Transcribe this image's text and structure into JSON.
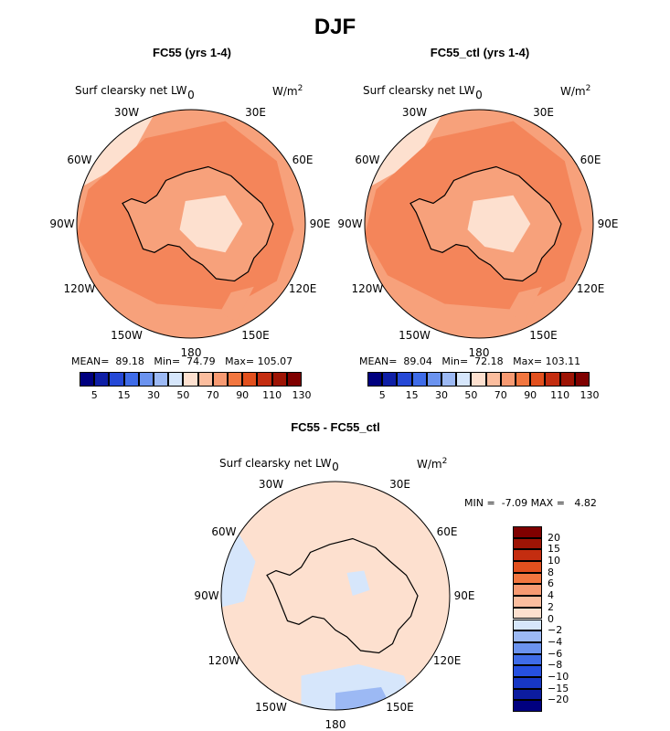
{
  "title": "DJF",
  "variable": "Surf clearsky net LW",
  "units": "W/m",
  "units_exponent": "2",
  "lon_labels": [
    "0",
    "30E",
    "60E",
    "90E",
    "120E",
    "150E",
    "180",
    "150W",
    "120W",
    "90W",
    "60W",
    "30W"
  ],
  "colors": {
    "full_field": [
      "#00007f",
      "#0f1fa6",
      "#2548d6",
      "#3f6ce8",
      "#6b93ef",
      "#9cb9f4",
      "#d6e6fb",
      "#fde0cf",
      "#fbbd9e",
      "#f79a72",
      "#f2763f",
      "#e2501e",
      "#c42d10",
      "#9e1405",
      "#7f0000"
    ],
    "diff_field": [
      "#00007f",
      "#0c1ca0",
      "#1737c4",
      "#2650e0",
      "#3f6ce8",
      "#6b93ef",
      "#9cb9f4",
      "#d6e6fb",
      "#fde0cf",
      "#fbbd9e",
      "#f79a72",
      "#f2763f",
      "#e2501e",
      "#c42d10",
      "#9e1405",
      "#7f0000"
    ],
    "ocean_a": "#f7a17b",
    "ocean_b": "#f4855a",
    "land_a": "#f2763f",
    "diff_bg": "#fde0cf",
    "diff_neg": "#d6e6fb",
    "diff_neg2": "#9cb9f4"
  },
  "chart_data": [
    {
      "type": "heatmap",
      "title": "FC55 (yrs 1-4)",
      "projection": "south-polar-stereographic",
      "stats": {
        "mean_label": "MEAN=",
        "mean": "89.18",
        "min_label": "Min=",
        "min": "74.79",
        "max_label": "Max=",
        "max": "105.07"
      },
      "colorbar_ticks": [
        "5",
        "15",
        "30",
        "50",
        "70",
        "90",
        "110",
        "130"
      ]
    },
    {
      "type": "heatmap",
      "title": "FC55_ctl (yrs 1-4)",
      "projection": "south-polar-stereographic",
      "stats": {
        "mean_label": "MEAN=",
        "mean": "89.04",
        "min_label": "Min=",
        "min": "72.18",
        "max_label": "Max=",
        "max": "103.11"
      },
      "colorbar_ticks": [
        "5",
        "15",
        "30",
        "50",
        "70",
        "90",
        "110",
        "130"
      ]
    },
    {
      "type": "heatmap",
      "title": "FC55 - FC55_ctl",
      "projection": "south-polar-stereographic",
      "stats": {
        "min_label": "MIN =",
        "min": "-7.09",
        "max_label": "MAX =",
        "max": "4.82"
      },
      "colorbar_ticks": [
        "20",
        "15",
        "10",
        "8",
        "6",
        "4",
        "2",
        "0",
        "−2",
        "−4",
        "−6",
        "−8",
        "−10",
        "−15",
        "−20"
      ]
    }
  ]
}
